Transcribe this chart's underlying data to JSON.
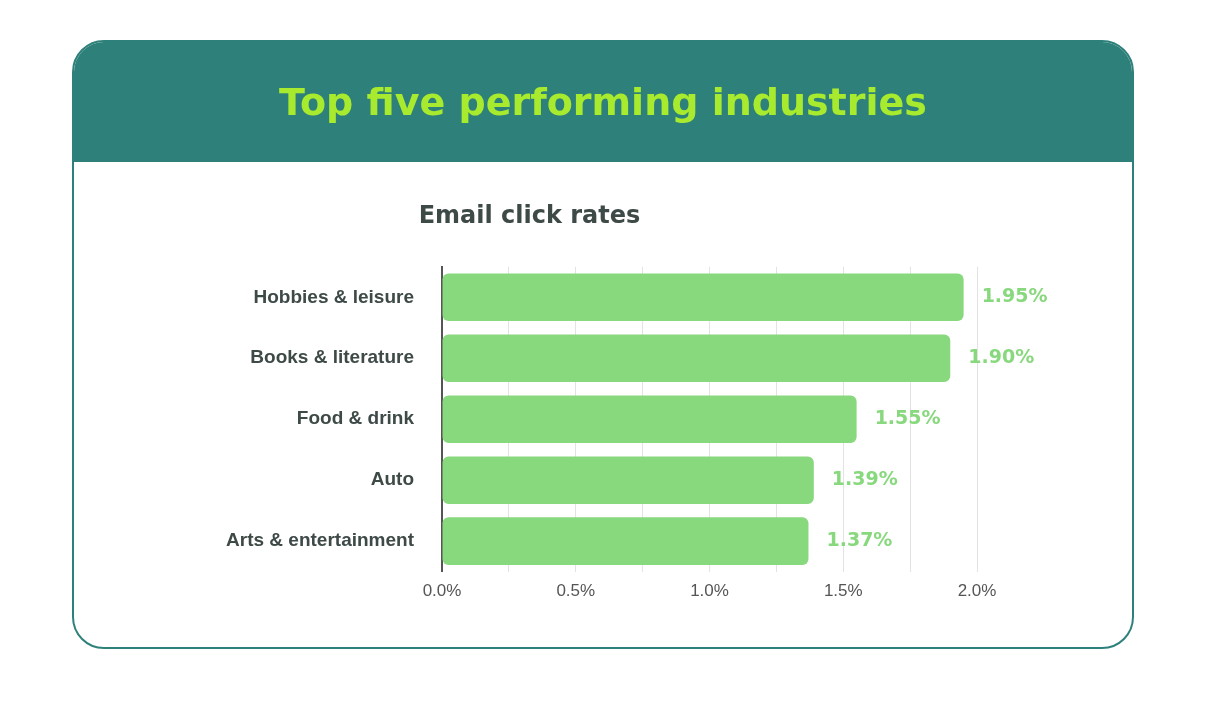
{
  "chart_data": {
    "type": "bar",
    "orientation": "horizontal",
    "title": "Top five performing industries",
    "subtitle": "Email click rates",
    "categories": [
      "Hobbies & leisure",
      "Books & literature",
      "Food & drink",
      "Auto",
      "Arts & entertainment"
    ],
    "values": [
      1.95,
      1.9,
      1.55,
      1.39,
      1.37
    ],
    "value_labels": [
      "1.95%",
      "1.90%",
      "1.55%",
      "1.39%",
      "1.37%"
    ],
    "color": "#88d87e",
    "xlim": [
      0,
      2.0
    ],
    "xticks": [
      {
        "value": 0,
        "label": "0.0%"
      },
      {
        "value": 0.25,
        "label": null
      },
      {
        "value": 0.5,
        "label": "0.5%"
      },
      {
        "value": 0.75,
        "label": null
      },
      {
        "value": 1.0,
        "label": "1.0%"
      },
      {
        "value": 1.25,
        "label": null
      },
      {
        "value": 1.5,
        "label": "1.5%"
      },
      {
        "value": 1.75,
        "label": null
      },
      {
        "value": 2.0,
        "label": "2.0%"
      }
    ],
    "grid": "x"
  }
}
